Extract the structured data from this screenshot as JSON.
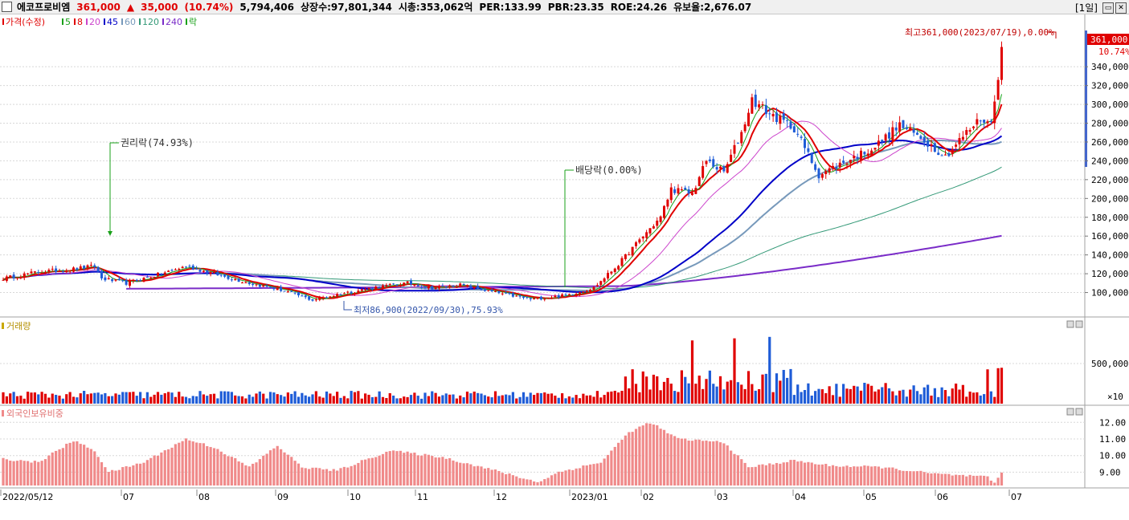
{
  "header": {
    "name": "에코프로비엠",
    "price": "361,000",
    "change_arrow": "▲",
    "change": "35,000",
    "change_pct": "(10.74%)",
    "volume": "5,794,406",
    "listed": "상장수:97,801,344",
    "mcap": "시총:353,062억",
    "per": "PER:133.99",
    "pbr": "PBR:23.35",
    "roe": "ROE:24.26",
    "float": "유보율:2,676.07",
    "period": "[1일]"
  },
  "colors": {
    "up": "#e00000",
    "down": "#1e5cd7",
    "ma5": "#19a019",
    "ma8": "#e00000",
    "ma20": "#cc44cc",
    "ma45": "#0000c8",
    "ma60": "#7799bb",
    "ma120": "#339977",
    "ma240": "#7a2cc8",
    "foreign": "#f08a8a"
  },
  "price_panel": {
    "legend": [
      {
        "label": "가격(수정)",
        "color": "#e00000"
      },
      {
        "label": "5",
        "color": "#19a019"
      },
      {
        "label": "8",
        "color": "#e00000"
      },
      {
        "label": "20",
        "color": "#cc44cc"
      },
      {
        "label": "45",
        "color": "#0000c8"
      },
      {
        "label": "60",
        "color": "#7799bb"
      },
      {
        "label": "120",
        "color": "#339977"
      },
      {
        "label": "240",
        "color": "#7a2cc8"
      },
      {
        "label": "락",
        "color": "#19a019"
      }
    ],
    "annotations": {
      "high": "최고361,000(2023/07/19),0.00%",
      "low": "최저86,900(2022/09/30),75.93%",
      "rights": "권리락(74.93%)",
      "dividend": "배당락(0.00%)"
    },
    "price_box": "361,000",
    "pct_box": "10.74%"
  },
  "volume_panel": {
    "title": "거래량",
    "tick": "500,000",
    "unit": "×10"
  },
  "foreign_panel": {
    "title": "외국인보유비중"
  },
  "chart_data": {
    "type": "candlestick",
    "x_dates": [
      "2022/05/12",
      "07",
      "08",
      "09",
      "10",
      "11",
      "12",
      "2023/01",
      "02",
      "03",
      "04",
      "05",
      "06",
      "07"
    ],
    "y_ticks": [
      "100,000",
      "120,000",
      "140,000",
      "160,000",
      "180,000",
      "200,000",
      "220,000",
      "240,000",
      "260,000",
      "280,000",
      "300,000",
      "320,000",
      "340,000"
    ],
    "y_range": [
      80000,
      370000
    ],
    "close_anchors": [
      [
        0,
        115000
      ],
      [
        10,
        122000
      ],
      [
        20,
        125000
      ],
      [
        26,
        128000
      ],
      [
        28,
        115000
      ],
      [
        35,
        110000
      ],
      [
        45,
        120000
      ],
      [
        52,
        128000
      ],
      [
        60,
        120000
      ],
      [
        70,
        110000
      ],
      [
        80,
        102000
      ],
      [
        88,
        92000
      ],
      [
        95,
        98000
      ],
      [
        105,
        105000
      ],
      [
        115,
        110000
      ],
      [
        122,
        105000
      ],
      [
        130,
        108000
      ],
      [
        140,
        100000
      ],
      [
        150,
        93000
      ],
      [
        160,
        97000
      ],
      [
        168,
        105000
      ],
      [
        175,
        130000
      ],
      [
        182,
        160000
      ],
      [
        187,
        180000
      ],
      [
        190,
        210000
      ],
      [
        196,
        205000
      ],
      [
        200,
        240000
      ],
      [
        205,
        228000
      ],
      [
        210,
        270000
      ],
      [
        213,
        305000
      ],
      [
        218,
        290000
      ],
      [
        225,
        275000
      ],
      [
        232,
        225000
      ],
      [
        240,
        240000
      ],
      [
        248,
        255000
      ],
      [
        255,
        278000
      ],
      [
        262,
        262000
      ],
      [
        268,
        245000
      ],
      [
        272,
        262000
      ],
      [
        278,
        285000
      ],
      [
        281,
        280000
      ],
      [
        283,
        326000
      ],
      [
        284,
        361000
      ]
    ],
    "volume_tick": "500,000",
    "foreign_ticks": [
      "9.00",
      "10.00",
      "11.00",
      "12.00"
    ],
    "foreign_range": [
      8.2,
      12.4
    ],
    "foreign_anchors": [
      [
        0,
        9.8
      ],
      [
        10,
        9.6
      ],
      [
        20,
        10.9
      ],
      [
        26,
        10.3
      ],
      [
        30,
        9.0
      ],
      [
        40,
        9.6
      ],
      [
        52,
        11.0
      ],
      [
        60,
        10.5
      ],
      [
        70,
        9.3
      ],
      [
        78,
        10.6
      ],
      [
        85,
        9.3
      ],
      [
        95,
        9.1
      ],
      [
        110,
        10.3
      ],
      [
        125,
        9.9
      ],
      [
        140,
        9.1
      ],
      [
        152,
        8.4
      ],
      [
        158,
        9.0
      ],
      [
        170,
        9.6
      ],
      [
        178,
        11.4
      ],
      [
        184,
        12.0
      ],
      [
        192,
        11.0
      ],
      [
        205,
        10.8
      ],
      [
        212,
        9.3
      ],
      [
        225,
        9.7
      ],
      [
        235,
        9.4
      ],
      [
        250,
        9.3
      ],
      [
        265,
        8.9
      ],
      [
        280,
        8.7
      ],
      [
        282,
        8.3
      ],
      [
        284,
        9.0
      ]
    ]
  }
}
